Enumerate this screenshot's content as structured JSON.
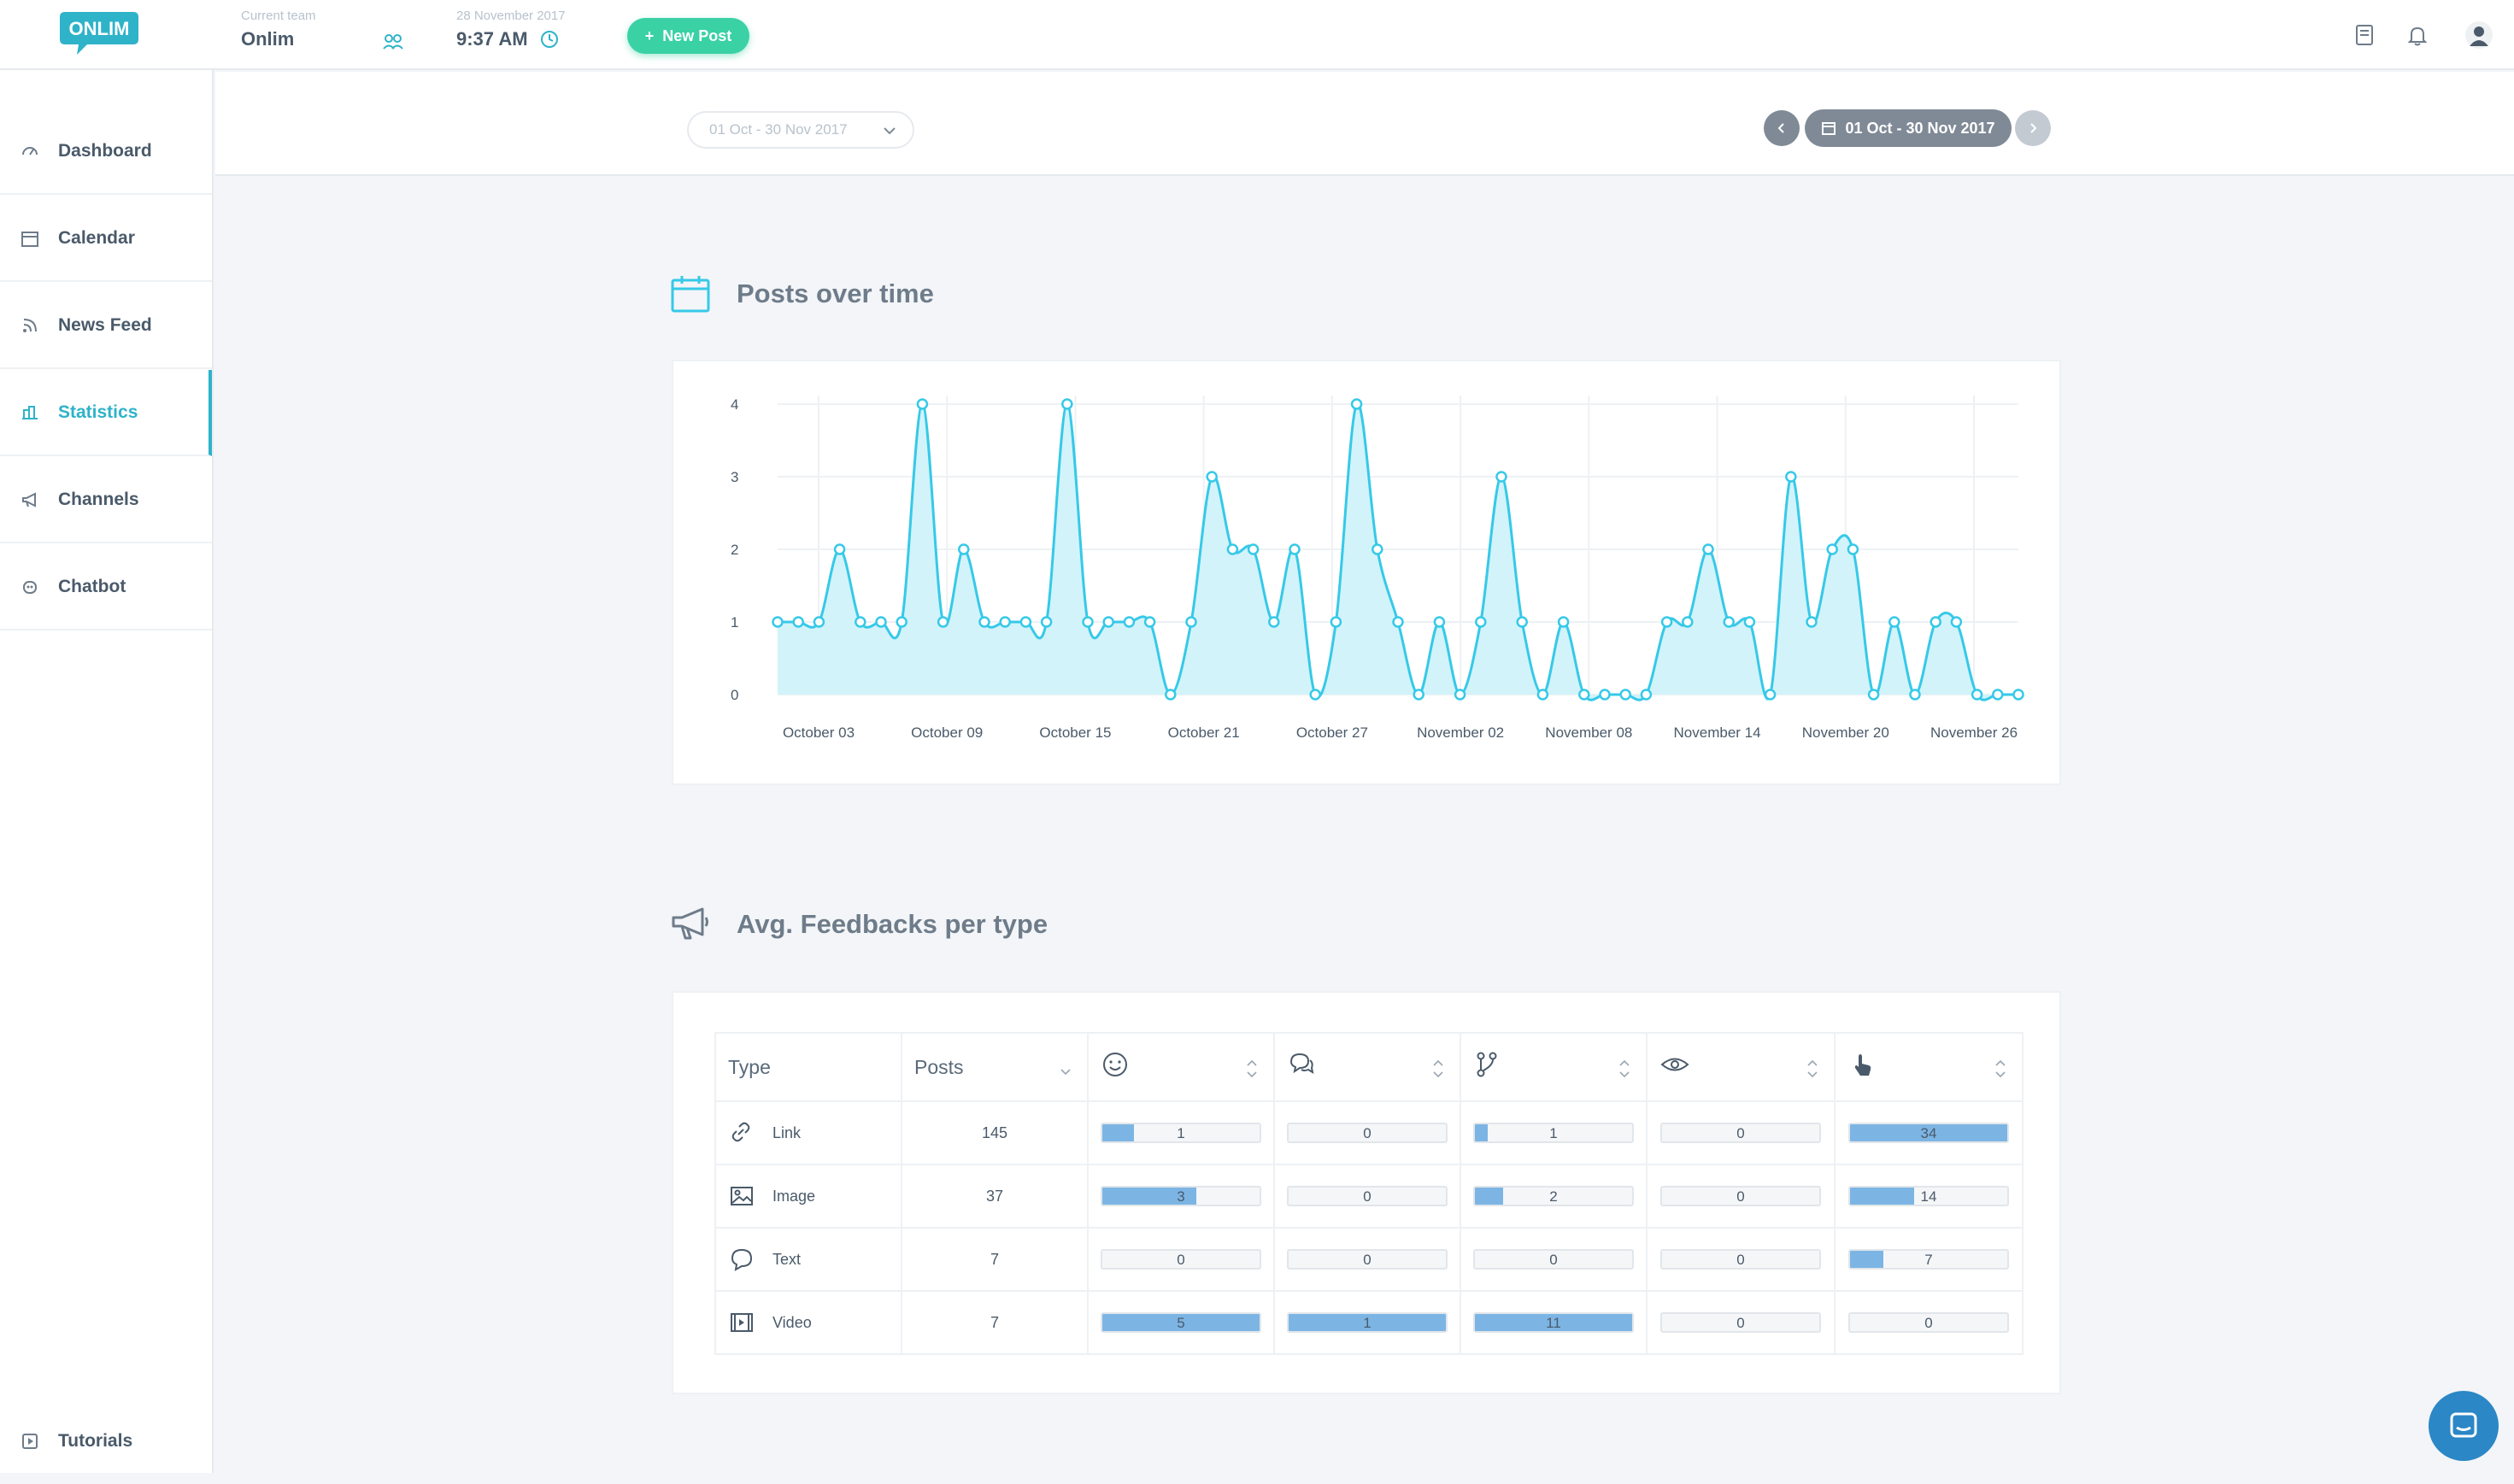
{
  "header": {
    "logo_text": "ONLIM",
    "team_label": "Current team",
    "team_name": "Onlim",
    "date_label": "28 November 2017",
    "time": "9:37 AM",
    "new_post_label": "New Post"
  },
  "sidebar": {
    "items": [
      {
        "label": "Dashboard",
        "icon": "gauge-icon"
      },
      {
        "label": "Calendar",
        "icon": "calendar-icon"
      },
      {
        "label": "News Feed",
        "icon": "rss-icon"
      },
      {
        "label": "Statistics",
        "icon": "statistics-icon",
        "active": true
      },
      {
        "label": "Channels",
        "icon": "megaphone-icon"
      },
      {
        "label": "Chatbot",
        "icon": "robot-icon"
      }
    ],
    "tutorials_label": "Tutorials"
  },
  "filters": {
    "select_value": "01 Oct - 30 Nov 2017",
    "range_label": "01 Oct - 30 Nov 2017"
  },
  "posts_section": {
    "title": "Posts over time"
  },
  "chart_data": {
    "type": "area",
    "title": "Posts over time",
    "x_tick_labels": [
      "October 03",
      "October 09",
      "October 15",
      "October 21",
      "October 27",
      "November 02",
      "November 08",
      "November 14",
      "November 20",
      "November 26"
    ],
    "y_tick_labels": [
      "0",
      "1",
      "2",
      "3",
      "4"
    ],
    "ylim": [
      0,
      4
    ],
    "grid": true,
    "color": "#36c9e8",
    "fill_color": "#d2f3fa",
    "series": [
      {
        "values": [
          1,
          1,
          1,
          2,
          1,
          1,
          1,
          4,
          1,
          2,
          1,
          1,
          1,
          1,
          4,
          1,
          1,
          1,
          1,
          0,
          1,
          3,
          2,
          2,
          1,
          2,
          0,
          1,
          4,
          2,
          1,
          0,
          1,
          0,
          1,
          3,
          1,
          0,
          1,
          0,
          0,
          0,
          0,
          1,
          1,
          2,
          1,
          1,
          0,
          3,
          1,
          2,
          2,
          0,
          1,
          0,
          1,
          1,
          0,
          0,
          0
        ]
      }
    ]
  },
  "feedback_section": {
    "title": "Avg. Feedbacks per type",
    "columns": {
      "type": "Type",
      "posts": "Posts",
      "icons": [
        "smiley-icon",
        "comment-icon",
        "share-icon",
        "eye-icon",
        "click-icon"
      ]
    },
    "rows": [
      {
        "type": "Link",
        "icon": "link-icon",
        "posts": "145",
        "values": [
          "1",
          "0",
          "1",
          "0",
          "34"
        ],
        "fractions": [
          0.2,
          0,
          0.08,
          0,
          1
        ]
      },
      {
        "type": "Image",
        "icon": "image-icon",
        "posts": "37",
        "values": [
          "3",
          "0",
          "2",
          "0",
          "14"
        ],
        "fractions": [
          0.6,
          0,
          0.18,
          0,
          0.41
        ]
      },
      {
        "type": "Text",
        "icon": "text-bubble-icon",
        "posts": "7",
        "values": [
          "0",
          "0",
          "0",
          "0",
          "7"
        ],
        "fractions": [
          0,
          0,
          0,
          0,
          0.21
        ]
      },
      {
        "type": "Video",
        "icon": "video-icon",
        "posts": "7",
        "values": [
          "5",
          "1",
          "11",
          "0",
          "0"
        ],
        "fractions": [
          1,
          1,
          1,
          0,
          0
        ]
      }
    ]
  }
}
